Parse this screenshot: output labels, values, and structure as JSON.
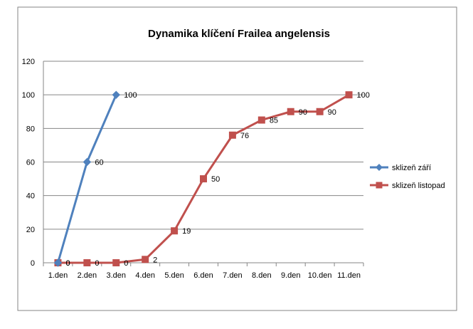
{
  "chart_data": {
    "type": "line",
    "title": "Dynamika klíčení  Frailea angelensis",
    "xlabel": "",
    "ylabel": "",
    "categories": [
      "1.den",
      "2.den",
      "3.den",
      "4.den",
      "5.den",
      "6.den",
      "7.den",
      "8.den",
      "9.den",
      "10.den",
      "11.den"
    ],
    "ylim": [
      0,
      120
    ],
    "yticks": [
      0,
      20,
      40,
      60,
      80,
      100,
      120
    ],
    "grid": true,
    "legend_position": "right",
    "series": [
      {
        "name": "sklizeň září",
        "color": "#4F81BD",
        "marker": "diamond",
        "x": [
          0,
          1,
          2
        ],
        "values": [
          0,
          60,
          100
        ],
        "labels": [
          "0",
          "60",
          "100"
        ]
      },
      {
        "name": "sklizeň listopad",
        "color": "#C0504D",
        "marker": "square",
        "x": [
          0,
          1,
          2,
          3,
          4,
          5,
          6,
          7,
          8,
          9,
          10
        ],
        "values": [
          0,
          0,
          0,
          2,
          19,
          50,
          76,
          85,
          90,
          90,
          100
        ],
        "labels": [
          "0",
          "0",
          "0",
          "2",
          "19",
          "50",
          "76",
          "85",
          "90",
          "90",
          "100"
        ]
      }
    ]
  }
}
